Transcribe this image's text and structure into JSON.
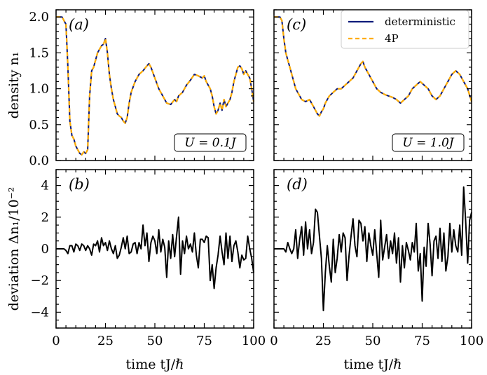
{
  "chart_data": [
    {
      "panel_label": "(a)",
      "type": "line",
      "ylabel": "density n₁",
      "xlim": [
        0,
        100
      ],
      "ylim": [
        0,
        2.1
      ],
      "yticks": [
        "0.0",
        "0.5",
        "1.0",
        "1.5",
        "2.0"
      ],
      "annotation": "U = 0.1J",
      "series": [
        {
          "name": "deterministic",
          "color": "#0d1a7a",
          "x": [
            0,
            3,
            5,
            6,
            7,
            8,
            9,
            10,
            11,
            12,
            13,
            14,
            15,
            16,
            17,
            18,
            19,
            20,
            21,
            22,
            23,
            24,
            25,
            26,
            27,
            28,
            29,
            30,
            31,
            32,
            33,
            34,
            35,
            36,
            37,
            38,
            40,
            42,
            44,
            46,
            47,
            48,
            50,
            52,
            54,
            56,
            58,
            60,
            61,
            62,
            64,
            66,
            68,
            70,
            72,
            74,
            75,
            76,
            78,
            79,
            80,
            81,
            82,
            83,
            84,
            85,
            86,
            87,
            88,
            89,
            90,
            91,
            92,
            93,
            94,
            95,
            96,
            97,
            98,
            99,
            100
          ],
          "y": [
            2.0,
            2.0,
            1.9,
            1.3,
            0.55,
            0.35,
            0.3,
            0.2,
            0.15,
            0.1,
            0.08,
            0.12,
            0.1,
            0.15,
            0.9,
            1.25,
            1.3,
            1.4,
            1.5,
            1.55,
            1.6,
            1.62,
            1.7,
            1.5,
            1.2,
            1.0,
            0.85,
            0.75,
            0.65,
            0.62,
            0.6,
            0.55,
            0.52,
            0.6,
            0.8,
            0.95,
            1.1,
            1.2,
            1.25,
            1.32,
            1.35,
            1.3,
            1.15,
            1.0,
            0.9,
            0.8,
            0.78,
            0.85,
            0.82,
            0.9,
            0.95,
            1.05,
            1.12,
            1.2,
            1.18,
            1.15,
            1.18,
            1.1,
            1.0,
            0.9,
            0.75,
            0.65,
            0.7,
            0.8,
            0.7,
            0.85,
            0.75,
            0.8,
            0.85,
            0.95,
            1.1,
            1.2,
            1.3,
            1.32,
            1.28,
            1.2,
            1.25,
            1.2,
            1.15,
            1.0,
            0.82
          ]
        },
        {
          "name": "4P",
          "color": "#ffad00",
          "x": [
            0,
            3,
            5,
            6,
            7,
            8,
            9,
            10,
            11,
            12,
            13,
            14,
            15,
            16,
            17,
            18,
            19,
            20,
            21,
            22,
            23,
            24,
            25,
            26,
            27,
            28,
            29,
            30,
            31,
            32,
            33,
            34,
            35,
            36,
            37,
            38,
            40,
            42,
            44,
            46,
            47,
            48,
            50,
            52,
            54,
            56,
            58,
            60,
            61,
            62,
            64,
            66,
            68,
            70,
            72,
            74,
            75,
            76,
            78,
            79,
            80,
            81,
            82,
            83,
            84,
            85,
            86,
            87,
            88,
            89,
            90,
            91,
            92,
            93,
            94,
            95,
            96,
            97,
            98,
            99,
            100
          ],
          "y": [
            2.0,
            2.0,
            1.9,
            1.3,
            0.55,
            0.35,
            0.3,
            0.2,
            0.15,
            0.1,
            0.08,
            0.12,
            0.1,
            0.15,
            0.9,
            1.25,
            1.3,
            1.4,
            1.5,
            1.55,
            1.6,
            1.62,
            1.7,
            1.5,
            1.2,
            1.0,
            0.85,
            0.75,
            0.65,
            0.62,
            0.6,
            0.55,
            0.52,
            0.6,
            0.8,
            0.95,
            1.1,
            1.2,
            1.25,
            1.32,
            1.35,
            1.3,
            1.15,
            1.0,
            0.9,
            0.8,
            0.78,
            0.85,
            0.82,
            0.9,
            0.95,
            1.05,
            1.12,
            1.2,
            1.18,
            1.15,
            1.18,
            1.1,
            1.0,
            0.9,
            0.75,
            0.65,
            0.7,
            0.8,
            0.7,
            0.85,
            0.75,
            0.8,
            0.85,
            0.95,
            1.1,
            1.2,
            1.3,
            1.32,
            1.28,
            1.2,
            1.25,
            1.2,
            1.15,
            1.0,
            0.82
          ]
        }
      ]
    },
    {
      "panel_label": "(c)",
      "type": "line",
      "xlim": [
        0,
        100
      ],
      "ylim": [
        0,
        2.1
      ],
      "annotation": "U = 1.0J",
      "legend": {
        "position": "top-right"
      },
      "series": [
        {
          "name": "deterministic",
          "color": "#0d1a7a",
          "x": [
            0,
            3,
            4,
            5,
            6,
            7,
            8,
            9,
            10,
            11,
            12,
            13,
            14,
            16,
            18,
            20,
            21,
            22,
            23,
            24,
            25,
            26,
            27,
            28,
            30,
            32,
            34,
            36,
            38,
            40,
            42,
            44,
            45,
            46,
            48,
            50,
            52,
            54,
            56,
            58,
            60,
            62,
            64,
            66,
            68,
            70,
            72,
            74,
            76,
            78,
            80,
            82,
            84,
            86,
            88,
            90,
            92,
            94,
            96,
            98,
            100
          ],
          "y": [
            2.0,
            2.0,
            1.95,
            1.7,
            1.5,
            1.4,
            1.3,
            1.2,
            1.1,
            1.0,
            0.95,
            0.9,
            0.85,
            0.82,
            0.85,
            0.75,
            0.7,
            0.65,
            0.62,
            0.68,
            0.72,
            0.8,
            0.85,
            0.9,
            0.95,
            1.0,
            1.0,
            1.05,
            1.1,
            1.15,
            1.25,
            1.35,
            1.38,
            1.3,
            1.2,
            1.1,
            1.0,
            0.95,
            0.92,
            0.9,
            0.88,
            0.85,
            0.8,
            0.85,
            0.9,
            1.0,
            1.05,
            1.1,
            1.05,
            1.0,
            0.9,
            0.85,
            0.9,
            1.0,
            1.1,
            1.2,
            1.25,
            1.2,
            1.1,
            1.0,
            0.82
          ]
        },
        {
          "name": "4P",
          "color": "#ffad00",
          "x": [
            0,
            3,
            4,
            5,
            6,
            7,
            8,
            9,
            10,
            11,
            12,
            13,
            14,
            16,
            18,
            20,
            21,
            22,
            23,
            24,
            25,
            26,
            27,
            28,
            30,
            32,
            34,
            36,
            38,
            40,
            42,
            44,
            45,
            46,
            48,
            50,
            52,
            54,
            56,
            58,
            60,
            62,
            64,
            66,
            68,
            70,
            72,
            74,
            76,
            78,
            80,
            82,
            84,
            86,
            88,
            90,
            92,
            94,
            96,
            98,
            100
          ],
          "y": [
            2.0,
            2.0,
            1.95,
            1.7,
            1.5,
            1.4,
            1.3,
            1.2,
            1.1,
            1.0,
            0.95,
            0.9,
            0.85,
            0.82,
            0.85,
            0.75,
            0.7,
            0.65,
            0.62,
            0.68,
            0.72,
            0.8,
            0.85,
            0.9,
            0.95,
            1.0,
            1.0,
            1.05,
            1.1,
            1.15,
            1.25,
            1.35,
            1.38,
            1.3,
            1.2,
            1.1,
            1.0,
            0.95,
            0.92,
            0.9,
            0.88,
            0.85,
            0.8,
            0.85,
            0.9,
            1.0,
            1.05,
            1.1,
            1.05,
            1.0,
            0.9,
            0.85,
            0.9,
            1.0,
            1.1,
            1.2,
            1.25,
            1.2,
            1.1,
            1.0,
            0.82
          ]
        }
      ]
    },
    {
      "panel_label": "(b)",
      "type": "line",
      "ylabel": "deviation Δn₁/10⁻²",
      "xlabel": "time tJ/ℏ",
      "xlim": [
        0,
        100
      ],
      "ylim": [
        -5,
        5
      ],
      "xticks": [
        "0",
        "25",
        "50",
        "75",
        "100"
      ],
      "yticks": [
        "−4",
        "−2",
        "0",
        "2",
        "4"
      ],
      "series": [
        {
          "color": "#000000",
          "x": [
            0,
            4,
            5,
            6,
            7,
            8,
            9,
            10,
            11,
            12,
            13,
            14,
            15,
            16,
            17,
            18,
            19,
            20,
            21,
            22,
            23,
            24,
            25,
            26,
            27,
            28,
            29,
            30,
            31,
            32,
            33,
            34,
            35,
            36,
            37,
            38,
            39,
            40,
            41,
            42,
            43,
            44,
            45,
            46,
            47,
            48,
            49,
            50,
            51,
            52,
            53,
            54,
            55,
            56,
            57,
            58,
            59,
            60,
            61,
            62,
            63,
            64,
            65,
            66,
            67,
            68,
            69,
            70,
            71,
            72,
            73,
            74,
            75,
            76,
            77,
            78,
            79,
            80,
            81,
            82,
            83,
            84,
            85,
            86,
            87,
            88,
            89,
            90,
            91,
            92,
            93,
            94,
            95,
            96,
            97,
            98,
            99,
            100
          ],
          "y": [
            0.0,
            0.0,
            -0.1,
            -0.3,
            0.2,
            0.2,
            -0.2,
            0.3,
            0.2,
            -0.1,
            0.3,
            0.2,
            -0.1,
            0.2,
            0.0,
            -0.4,
            0.3,
            0.2,
            0.5,
            -0.2,
            0.7,
            0.2,
            0.4,
            -0.1,
            0.5,
            0.0,
            -0.3,
            0.2,
            -0.6,
            -0.4,
            0.1,
            0.7,
            0.0,
            0.8,
            -0.3,
            -0.2,
            0.3,
            0.4,
            -0.3,
            0.4,
            0.0,
            1.5,
            0.2,
            1.0,
            -0.8,
            0.4,
            0.8,
            0.5,
            -0.3,
            1.2,
            -0.2,
            0.6,
            0.1,
            -1.8,
            0.5,
            -0.6,
            0.9,
            -0.5,
            0.8,
            2.0,
            -1.6,
            0.5,
            -0.3,
            0.8,
            0.0,
            0.3,
            -0.2,
            1.0,
            -0.4,
            -1.2,
            0.6,
            0.6,
            0.4,
            0.8,
            0.7,
            -2.0,
            -1.0,
            -2.5,
            -1.2,
            -0.4,
            0.8,
            -0.2,
            -1.0,
            1.0,
            -0.6,
            0.8,
            -0.8,
            0.2,
            0.5,
            -0.2,
            -1.2,
            -0.4,
            -0.7,
            -0.6,
            0.8,
            0.0,
            -0.6,
            -1.5
          ]
        }
      ]
    },
    {
      "panel_label": "(d)",
      "type": "line",
      "xlabel": "time tJ/ℏ",
      "xlim": [
        0,
        100
      ],
      "ylim": [
        -5,
        5
      ],
      "xticks": [
        "0",
        "25",
        "50",
        "75",
        "100"
      ],
      "series": [
        {
          "color": "#000000",
          "x": [
            0,
            4,
            5,
            6,
            7,
            8,
            9,
            10,
            11,
            12,
            13,
            14,
            15,
            16,
            17,
            18,
            19,
            20,
            21,
            22,
            23,
            24,
            25,
            26,
            27,
            28,
            29,
            30,
            31,
            32,
            33,
            34,
            35,
            36,
            37,
            38,
            39,
            40,
            41,
            42,
            43,
            44,
            45,
            46,
            47,
            48,
            49,
            50,
            51,
            52,
            53,
            54,
            55,
            56,
            57,
            58,
            59,
            60,
            61,
            62,
            63,
            64,
            65,
            66,
            67,
            68,
            69,
            70,
            71,
            72,
            73,
            74,
            75,
            76,
            77,
            78,
            79,
            80,
            81,
            82,
            83,
            84,
            85,
            86,
            87,
            88,
            89,
            90,
            91,
            92,
            93,
            94,
            95,
            96,
            97,
            98,
            99,
            100
          ],
          "y": [
            0.0,
            0.0,
            0.0,
            -0.2,
            0.4,
            0.0,
            -0.3,
            0.0,
            1.2,
            -0.6,
            0.6,
            1.4,
            -0.4,
            1.7,
            0.0,
            1.2,
            -0.3,
            0.4,
            2.5,
            2.3,
            0.8,
            -0.6,
            -3.9,
            -1.5,
            0.2,
            -1.1,
            -2.1,
            0.6,
            -1.5,
            -0.6,
            0.9,
            -0.2,
            1.0,
            0.7,
            -2.0,
            -0.4,
            0.8,
            1.9,
            0.2,
            -0.5,
            1.8,
            1.6,
            0.5,
            1.4,
            -0.8,
            1.0,
            0.2,
            -0.4,
            1.2,
            -0.3,
            -1.8,
            1.8,
            -0.7,
            0.1,
            0.9,
            -0.6,
            0.5,
            -0.3,
            1.0,
            -0.9,
            0.7,
            -2.1,
            0.2,
            -1.2,
            0.4,
            -0.1,
            -0.7,
            0.4,
            -0.2,
            1.6,
            -1.4,
            -0.3,
            -3.3,
            0.1,
            -1.1,
            1.6,
            0.3,
            -1.7,
            0.5,
            0.8,
            -0.6,
            1.3,
            -0.8,
            1.0,
            -1.4,
            -0.5,
            1.6,
            -0.2,
            1.2,
            0.2,
            -0.2,
            1.5,
            -0.4,
            3.9,
            1.8,
            -0.9,
            1.8,
            2.3
          ]
        }
      ]
    }
  ]
}
